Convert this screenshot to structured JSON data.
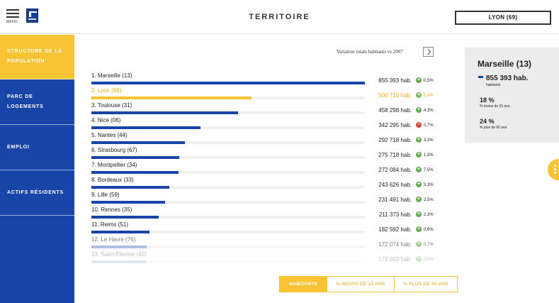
{
  "header": {
    "menu_label": "MENU",
    "title": "TERRITOIRE",
    "city_select": "LYON (69)"
  },
  "sidebar": {
    "items": [
      {
        "label": "STRUCTURE DE LA POPULATION"
      },
      {
        "label": "PARC DE LOGEMENTS"
      },
      {
        "label": "EMPLOI"
      },
      {
        "label": "ACTIFS RÉSIDENTS"
      }
    ]
  },
  "variation_label": "Variation totale habitants vs 2007",
  "ranking": [
    {
      "name": "1. Marseille (13)",
      "value": "855 393 hab.",
      "pct": "0,5%",
      "trend": "up",
      "share": 1.0
    },
    {
      "name": "2. Lyon (69)",
      "value": "500 715 hab.",
      "pct": "5,4%",
      "trend": "up",
      "share": 0.585
    },
    {
      "name": "3. Toulouse (31)",
      "value": "458 298 hab.",
      "pct": "4,3%",
      "trend": "up",
      "share": 0.536
    },
    {
      "name": "4. Nice (06)",
      "value": "342 295 hab.",
      "pct": "0,7%",
      "trend": "down",
      "share": 0.4
    },
    {
      "name": "5. Nantes (44)",
      "value": "292 718 hab.",
      "pct": "3,3%",
      "trend": "up",
      "share": 0.342
    },
    {
      "name": "6. Strasbourg (67)",
      "value": "275 718 hab.",
      "pct": "1,3%",
      "trend": "up",
      "share": 0.322
    },
    {
      "name": "7. Montpellier (34)",
      "value": "272 084 hab.",
      "pct": "7,5%",
      "trend": "up",
      "share": 0.318
    },
    {
      "name": "8. Bordeaux (33)",
      "value": "243 626 hab.",
      "pct": "3,3%",
      "trend": "up",
      "share": 0.285
    },
    {
      "name": "9. Lille (59)",
      "value": "231 491 hab.",
      "pct": "2,5%",
      "trend": "up",
      "share": 0.27
    },
    {
      "name": "10. Rennes (35)",
      "value": "211 373 hab.",
      "pct": "2,3%",
      "trend": "up",
      "share": 0.247
    },
    {
      "name": "11. Reims (51)",
      "value": "182 592 hab.",
      "pct": "0,6%",
      "trend": "up",
      "share": 0.213
    },
    {
      "name": "12. Le Havre (76)",
      "value": "172 074 hab.",
      "pct": "3,7%",
      "trend": "up",
      "share": 0.201
    },
    {
      "name": "13. Saint-Étienne (42)",
      "value": "172 023 hab.",
      "pct": "0,0%",
      "trend": "up",
      "share": 0.201
    }
  ],
  "card": {
    "city": "Marseille (13)",
    "habitants": "855 393 hab.",
    "habitants_label": "habitants",
    "stat1_value": "18 %",
    "stat1_label": "% moins de 15 ans",
    "stat2_value": "24 %",
    "stat2_label": "% plus de 60 ans"
  },
  "tabs": [
    "HABITANTS",
    "% MOINS DE 15 ANS",
    "% PLUS DE 60 ANS"
  ],
  "colors": {
    "primary_blue": "#1a45a8",
    "accent_yellow": "#f8c436",
    "trend_up": "#66aa55",
    "trend_down": "#d84a3a"
  }
}
